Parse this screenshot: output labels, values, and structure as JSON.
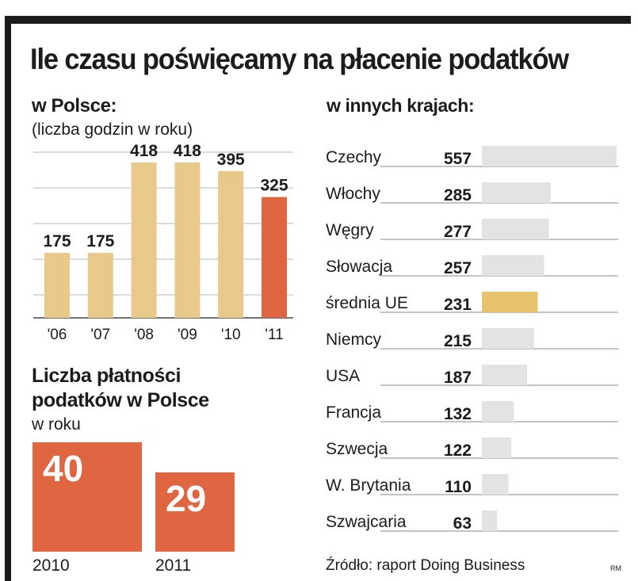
{
  "title": "Ile czasu poświęcamy na płacenie podatków",
  "poland": {
    "heading": "w Polsce:",
    "subheading": "(liczba godzin w roku)"
  },
  "others": {
    "heading": "w innych krajach:"
  },
  "payments": {
    "heading_line1": "Liczba płatności",
    "heading_line2": "podatków w Polsce",
    "subheading": "w roku",
    "boxes": [
      {
        "year": "2010",
        "value": "40"
      },
      {
        "year": "2011",
        "value": "29"
      }
    ]
  },
  "source": "Źródło: raport Doing Business",
  "credit": "RM",
  "colors": {
    "tan": "#e8c98a",
    "red": "#e06642",
    "gray": "#e3e3e3",
    "highlight": "#e8c36e",
    "text": "#1c1c1c"
  },
  "chart_data": [
    {
      "type": "bar",
      "title": "w Polsce: (liczba godzin w roku)",
      "categories": [
        "'06",
        "'07",
        "'08",
        "'09",
        "'10",
        "'11"
      ],
      "values": [
        175,
        175,
        418,
        418,
        395,
        325
      ],
      "value_labels": [
        "175",
        "175",
        "418",
        "418",
        "395",
        "325"
      ],
      "highlight_index": 5,
      "ylim": [
        0,
        450
      ],
      "grid": true
    },
    {
      "type": "bar",
      "orientation": "horizontal",
      "title": "w innych krajach:",
      "categories": [
        "Czechy",
        "Włochy",
        "Węgry",
        "Słowacja",
        "średnia UE",
        "Niemcy",
        "USA",
        "Francja",
        "Szwecja",
        "W. Brytania",
        "Szwajcaria"
      ],
      "values": [
        557,
        285,
        277,
        257,
        231,
        215,
        187,
        132,
        122,
        110,
        63
      ],
      "value_labels": [
        "557",
        "285",
        "277",
        "257",
        "231",
        "215",
        "187",
        "132",
        "122",
        "110",
        "63"
      ],
      "highlight_index": 4,
      "xlim": [
        0,
        557
      ]
    }
  ]
}
